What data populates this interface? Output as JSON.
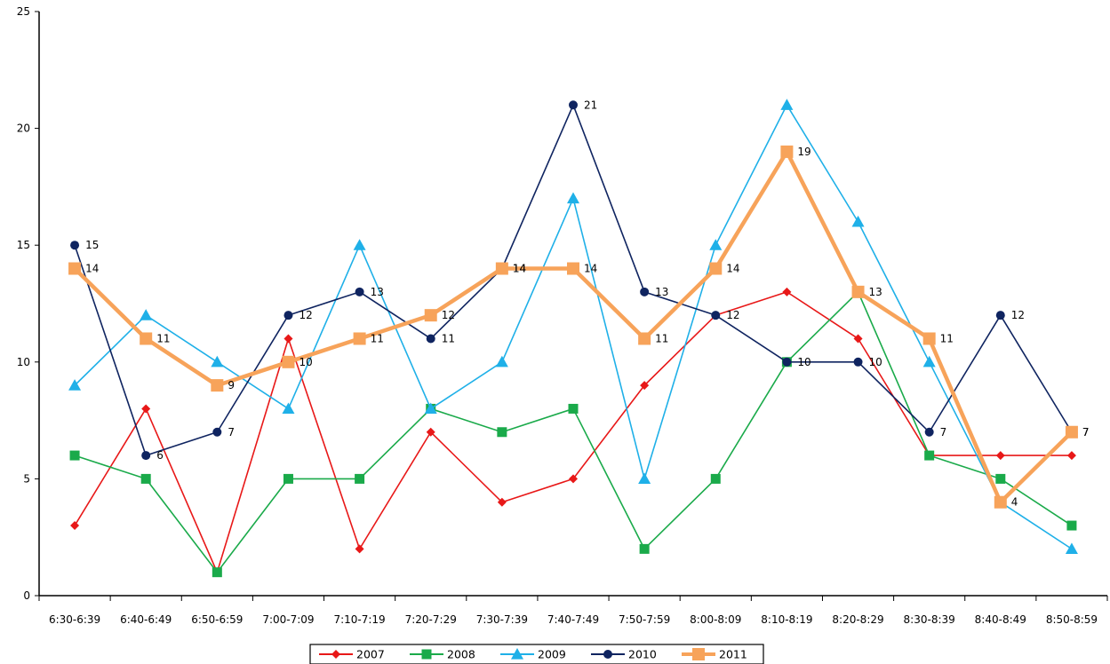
{
  "chart_data": {
    "type": "line",
    "title": "",
    "xlabel": "",
    "ylabel": "",
    "ylim": [
      0,
      25
    ],
    "yticks": [
      0,
      5,
      10,
      15,
      20,
      25
    ],
    "grid": false,
    "legend_position": "bottom",
    "categories": [
      "6:30-6:39",
      "6:40-6:49",
      "6:50-6:59",
      "7:00-7:09",
      "7:10-7:19",
      "7:20-7:29",
      "7:30-7:39",
      "7:40-7:49",
      "7:50-7:59",
      "8:00-8:09",
      "8:10-8:19",
      "8:20-8:29",
      "8:30-8:39",
      "8:40-8:49",
      "8:50-8:59"
    ],
    "series": [
      {
        "name": "2007",
        "color": "#e81818",
        "marker": "diamond",
        "values": [
          3,
          8,
          1,
          11,
          2,
          7,
          4,
          5,
          9,
          12,
          13,
          11,
          6,
          6,
          6
        ],
        "show_labels": false
      },
      {
        "name": "2008",
        "color": "#1aaa4a",
        "marker": "square",
        "values": [
          6,
          5,
          1,
          5,
          5,
          8,
          7,
          8,
          2,
          5,
          10,
          13,
          6,
          5,
          3
        ],
        "show_labels": false
      },
      {
        "name": "2009",
        "color": "#1fb0e8",
        "marker": "triangle",
        "values": [
          9,
          12,
          10,
          8,
          15,
          8,
          10,
          17,
          5,
          15,
          21,
          16,
          10,
          4,
          2
        ],
        "show_labels": false
      },
      {
        "name": "2010",
        "color": "#0f2460",
        "marker": "circle",
        "values": [
          15,
          6,
          7,
          12,
          13,
          11,
          14,
          21,
          13,
          12,
          10,
          10,
          7,
          12,
          7
        ],
        "show_labels": true
      },
      {
        "name": "2011",
        "color": "#f7a35a",
        "marker": "bigsquare",
        "values": [
          14,
          11,
          9,
          10,
          11,
          12,
          14,
          14,
          11,
          14,
          19,
          13,
          11,
          4,
          7
        ],
        "show_labels": true
      }
    ]
  }
}
